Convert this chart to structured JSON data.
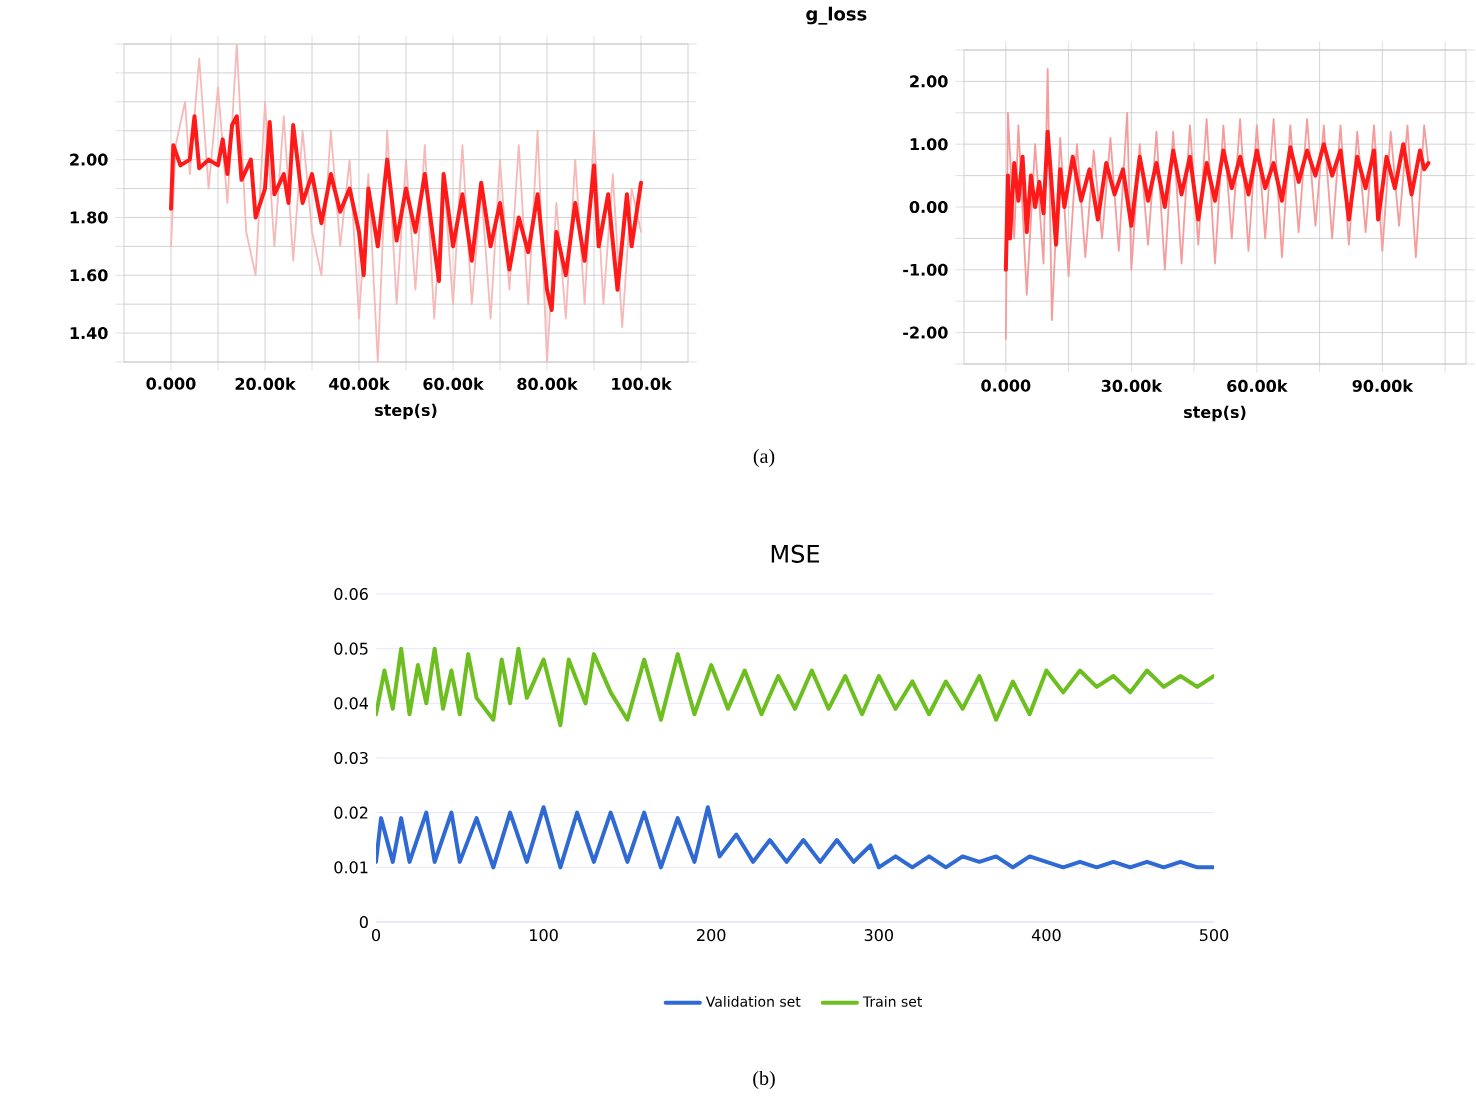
{
  "chart_data": [
    {
      "type": "line",
      "xlabel": "step(s)",
      "xlim": [
        -10000,
        110000
      ],
      "ylim": [
        1.3,
        2.4
      ],
      "xticks": [
        {
          "value": 0,
          "label": "0.000"
        },
        {
          "value": 10000,
          "label": null
        },
        {
          "value": 20000,
          "label": "20.00k"
        },
        {
          "value": 30000,
          "label": null
        },
        {
          "value": 40000,
          "label": "40.00k"
        },
        {
          "value": 50000,
          "label": null
        },
        {
          "value": 60000,
          "label": "60.00k"
        },
        {
          "value": 70000,
          "label": null
        },
        {
          "value": 80000,
          "label": "80.00k"
        },
        {
          "value": 90000,
          "label": null
        },
        {
          "value": 100000,
          "label": "100.0k"
        }
      ],
      "yticks": [
        {
          "value": 1.3,
          "label": null
        },
        {
          "value": 1.4,
          "label": "1.40"
        },
        {
          "value": 1.5,
          "label": null
        },
        {
          "value": 1.6,
          "label": "1.60"
        },
        {
          "value": 1.7,
          "label": null
        },
        {
          "value": 1.8,
          "label": "1.80"
        },
        {
          "value": 1.9,
          "label": null
        },
        {
          "value": 2.0,
          "label": "2.00"
        },
        {
          "value": 2.1,
          "label": null
        },
        {
          "value": 2.2,
          "label": null
        },
        {
          "value": 2.3,
          "label": null
        },
        {
          "value": 2.4,
          "label": null
        }
      ],
      "grid": true,
      "annotations": [
        "(a)"
      ],
      "series": [
        {
          "color": "#f7b8b8",
          "x": [
            0,
            1000,
            3000,
            4000,
            6000,
            8000,
            10000,
            12000,
            14000,
            16000,
            18000,
            20000,
            22000,
            24000,
            26000,
            28000,
            30000,
            32000,
            34000,
            36000,
            38000,
            40000,
            42000,
            44000,
            46000,
            48000,
            50000,
            52000,
            54000,
            56000,
            58000,
            60000,
            62000,
            64000,
            66000,
            68000,
            70000,
            72000,
            74000,
            76000,
            78000,
            80000,
            82000,
            84000,
            86000,
            88000,
            90000,
            92000,
            94000,
            96000,
            98000,
            100000
          ],
          "values": [
            1.7,
            2.05,
            2.2,
            1.95,
            2.35,
            1.9,
            2.25,
            1.85,
            2.4,
            1.75,
            1.6,
            2.2,
            1.7,
            2.15,
            1.65,
            2.1,
            1.75,
            1.6,
            2.1,
            1.7,
            2.0,
            1.45,
            1.95,
            1.3,
            2.1,
            1.5,
            2.0,
            1.55,
            2.05,
            1.45,
            1.95,
            1.5,
            2.05,
            1.5,
            1.9,
            1.45,
            2.0,
            1.55,
            2.05,
            1.5,
            2.1,
            1.3,
            1.85,
            1.45,
            2.0,
            1.5,
            2.1,
            1.5,
            1.95,
            1.42,
            1.9,
            1.75
          ]
        },
        {
          "color": "#ff1a1a",
          "x": [
            0,
            500,
            2000,
            4000,
            5000,
            6000,
            8000,
            10000,
            11000,
            12000,
            13000,
            14000,
            15000,
            17000,
            18000,
            20000,
            21000,
            22000,
            24000,
            25000,
            26000,
            28000,
            30000,
            32000,
            34000,
            36000,
            38000,
            40000,
            41000,
            42000,
            44000,
            46000,
            48000,
            50000,
            52000,
            54000,
            56000,
            57000,
            58000,
            60000,
            62000,
            64000,
            66000,
            68000,
            70000,
            72000,
            74000,
            76000,
            78000,
            80000,
            81000,
            82000,
            84000,
            86000,
            88000,
            90000,
            91000,
            93000,
            95000,
            97000,
            98000,
            100000
          ],
          "values": [
            1.83,
            2.05,
            1.98,
            2.0,
            2.15,
            1.97,
            2.0,
            1.98,
            2.07,
            1.95,
            2.12,
            2.15,
            1.93,
            2.0,
            1.8,
            1.9,
            2.13,
            1.88,
            1.95,
            1.85,
            2.12,
            1.85,
            1.95,
            1.78,
            1.95,
            1.82,
            1.9,
            1.75,
            1.6,
            1.9,
            1.7,
            2.0,
            1.72,
            1.9,
            1.75,
            1.95,
            1.7,
            1.58,
            1.95,
            1.7,
            1.88,
            1.65,
            1.92,
            1.7,
            1.85,
            1.62,
            1.8,
            1.68,
            1.88,
            1.55,
            1.48,
            1.75,
            1.6,
            1.85,
            1.65,
            1.98,
            1.7,
            1.88,
            1.55,
            1.88,
            1.7,
            1.92
          ]
        }
      ]
    },
    {
      "type": "line",
      "title": "g_loss",
      "xlabel": "step(s)",
      "xlim": [
        -10000,
        110000
      ],
      "ylim": [
        -2.5,
        2.5
      ],
      "xticks": [
        {
          "value": 0,
          "label": "0.000"
        },
        {
          "value": 15000,
          "label": null
        },
        {
          "value": 30000,
          "label": "30.00k"
        },
        {
          "value": 45000,
          "label": null
        },
        {
          "value": 60000,
          "label": "60.00k"
        },
        {
          "value": 75000,
          "label": null
        },
        {
          "value": 90000,
          "label": "90.00k"
        },
        {
          "value": 105000,
          "label": null
        }
      ],
      "yticks": [
        {
          "value": -2.5,
          "label": null
        },
        {
          "value": -2.0,
          "label": "-2.00"
        },
        {
          "value": -1.5,
          "label": null
        },
        {
          "value": -1.0,
          "label": "-1.00"
        },
        {
          "value": -0.5,
          "label": null
        },
        {
          "value": 0,
          "label": "0.00"
        },
        {
          "value": 0.5,
          "label": null
        },
        {
          "value": 1.0,
          "label": "1.00"
        },
        {
          "value": 1.5,
          "label": null
        },
        {
          "value": 2.0,
          "label": "2.00"
        },
        {
          "value": 2.5,
          "label": null
        }
      ],
      "grid": true,
      "series": [
        {
          "color": "#f59c9c",
          "x": [
            0,
            500,
            2000,
            3000,
            5000,
            7000,
            9000,
            10000,
            11000,
            13000,
            15000,
            17000,
            19000,
            21000,
            23000,
            25000,
            27000,
            29000,
            30000,
            32000,
            34000,
            36000,
            38000,
            40000,
            42000,
            44000,
            46000,
            48000,
            50000,
            52000,
            54000,
            56000,
            58000,
            60000,
            62000,
            64000,
            66000,
            68000,
            70000,
            72000,
            74000,
            76000,
            78000,
            80000,
            82000,
            84000,
            86000,
            88000,
            90000,
            92000,
            94000,
            96000,
            98000,
            100000,
            101000
          ],
          "values": [
            -2.1,
            1.5,
            -0.5,
            1.3,
            -1.4,
            1.0,
            -0.9,
            2.2,
            -1.8,
            1.1,
            -1.1,
            1.0,
            -0.8,
            0.9,
            -0.5,
            1.1,
            -0.7,
            1.5,
            -1.0,
            1.0,
            -0.6,
            1.2,
            -1.0,
            1.2,
            -0.9,
            1.3,
            -0.6,
            1.4,
            -0.9,
            1.3,
            -0.5,
            1.4,
            -0.7,
            1.3,
            -0.5,
            1.4,
            -0.8,
            1.3,
            -0.4,
            1.4,
            -0.3,
            1.3,
            -0.5,
            1.3,
            -0.6,
            1.2,
            -0.4,
            1.3,
            -0.7,
            1.2,
            -0.3,
            1.3,
            -0.8,
            1.3,
            0.7
          ]
        },
        {
          "color": "#ff1a1a",
          "x": [
            0,
            500,
            1000,
            2000,
            3000,
            4000,
            5000,
            6000,
            7000,
            8000,
            9000,
            10000,
            11000,
            12000,
            13000,
            14000,
            16000,
            18000,
            20000,
            22000,
            24000,
            26000,
            28000,
            30000,
            32000,
            34000,
            36000,
            38000,
            40000,
            42000,
            44000,
            46000,
            48000,
            50000,
            52000,
            54000,
            56000,
            58000,
            60000,
            62000,
            64000,
            66000,
            68000,
            70000,
            72000,
            74000,
            76000,
            78000,
            80000,
            82000,
            84000,
            86000,
            88000,
            89000,
            91000,
            93000,
            95000,
            97000,
            99000,
            100000,
            101000
          ],
          "values": [
            -1.0,
            0.5,
            -0.5,
            0.7,
            0.1,
            0.8,
            -0.4,
            0.5,
            0.0,
            0.4,
            -0.1,
            1.2,
            0.3,
            -0.6,
            0.6,
            0.0,
            0.8,
            0.1,
            0.6,
            -0.2,
            0.7,
            0.2,
            0.6,
            -0.3,
            0.8,
            0.1,
            0.7,
            0.0,
            0.9,
            0.2,
            0.8,
            -0.2,
            0.7,
            0.1,
            0.9,
            0.3,
            0.8,
            0.2,
            0.9,
            0.3,
            0.7,
            0.1,
            0.95,
            0.4,
            0.9,
            0.5,
            1.0,
            0.5,
            0.9,
            -0.2,
            0.8,
            0.3,
            0.9,
            -0.2,
            0.8,
            0.3,
            1.0,
            0.2,
            0.9,
            0.6,
            0.7
          ]
        }
      ]
    },
    {
      "type": "line",
      "title": "MSE",
      "xlim": [
        0,
        500
      ],
      "ylim": [
        0,
        0.06
      ],
      "xticks": [
        0,
        100,
        200,
        300,
        400,
        500
      ],
      "yticks": [
        0,
        0.01,
        0.02,
        0.03,
        0.04,
        0.05,
        0.06
      ],
      "grid": "y",
      "legend": "bottom",
      "annotations": [
        "(b)"
      ],
      "series": [
        {
          "name": "Validation set",
          "color": "#2f69d3",
          "x": [
            0,
            3,
            10,
            15,
            20,
            30,
            35,
            45,
            50,
            60,
            70,
            80,
            90,
            100,
            110,
            120,
            130,
            140,
            150,
            160,
            170,
            180,
            190,
            198,
            205,
            215,
            225,
            235,
            245,
            255,
            265,
            275,
            285,
            295,
            300,
            310,
            320,
            330,
            340,
            350,
            360,
            370,
            380,
            390,
            400,
            410,
            420,
            430,
            440,
            450,
            460,
            470,
            480,
            490,
            500
          ],
          "values": [
            0.011,
            0.019,
            0.011,
            0.019,
            0.011,
            0.02,
            0.011,
            0.02,
            0.011,
            0.019,
            0.01,
            0.02,
            0.011,
            0.021,
            0.01,
            0.02,
            0.011,
            0.02,
            0.011,
            0.02,
            0.01,
            0.019,
            0.011,
            0.021,
            0.012,
            0.016,
            0.011,
            0.015,
            0.011,
            0.015,
            0.011,
            0.015,
            0.011,
            0.014,
            0.01,
            0.012,
            0.01,
            0.012,
            0.01,
            0.012,
            0.011,
            0.012,
            0.01,
            0.012,
            0.011,
            0.01,
            0.011,
            0.01,
            0.011,
            0.01,
            0.011,
            0.01,
            0.011,
            0.01,
            0.01
          ]
        },
        {
          "name": "Train set",
          "color": "#6cbf1e",
          "x": [
            0,
            5,
            10,
            15,
            20,
            25,
            30,
            35,
            40,
            45,
            50,
            55,
            60,
            70,
            75,
            80,
            85,
            90,
            100,
            110,
            115,
            125,
            130,
            140,
            150,
            160,
            170,
            180,
            190,
            200,
            210,
            220,
            230,
            240,
            250,
            260,
            270,
            280,
            290,
            300,
            310,
            320,
            330,
            340,
            350,
            360,
            370,
            380,
            390,
            400,
            410,
            420,
            430,
            440,
            450,
            460,
            470,
            480,
            490,
            500
          ],
          "values": [
            0.038,
            0.046,
            0.039,
            0.05,
            0.038,
            0.047,
            0.04,
            0.05,
            0.039,
            0.046,
            0.038,
            0.049,
            0.041,
            0.037,
            0.048,
            0.04,
            0.05,
            0.041,
            0.048,
            0.036,
            0.048,
            0.04,
            0.049,
            0.042,
            0.037,
            0.048,
            0.037,
            0.049,
            0.038,
            0.047,
            0.039,
            0.046,
            0.038,
            0.045,
            0.039,
            0.046,
            0.039,
            0.045,
            0.038,
            0.045,
            0.039,
            0.044,
            0.038,
            0.044,
            0.039,
            0.045,
            0.037,
            0.044,
            0.038,
            0.046,
            0.042,
            0.046,
            0.043,
            0.045,
            0.042,
            0.046,
            0.043,
            0.045,
            0.043,
            0.045
          ]
        }
      ]
    }
  ]
}
